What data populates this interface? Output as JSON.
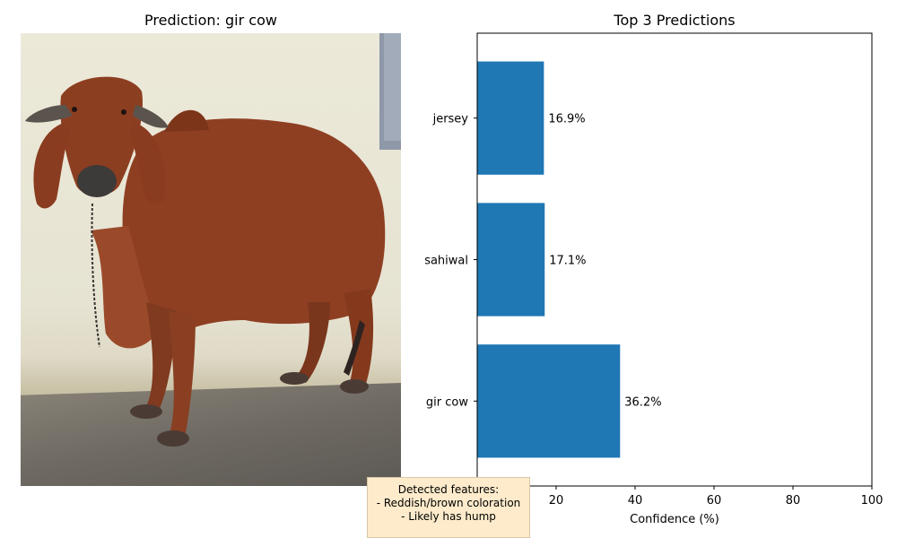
{
  "image_panel": {
    "title": "Prediction: gir cow"
  },
  "chart_data": {
    "type": "bar",
    "orientation": "horizontal",
    "title": "Top 3 Predictions",
    "xlabel": "Confidence (%)",
    "ylabel": "",
    "categories": [
      "gir cow",
      "sahiwal",
      "jersey"
    ],
    "values": [
      36.2,
      17.1,
      16.9
    ],
    "value_labels": [
      "36.2%",
      "17.1%",
      "16.9%"
    ],
    "xlim": [
      0,
      100
    ],
    "xticks": [
      0,
      20,
      40,
      60,
      80,
      100
    ],
    "grid": false,
    "bar_color": "#1f77b4"
  },
  "features_box": {
    "lines": [
      "Detected features:",
      "- Reddish/brown coloration",
      "- Likely has hump"
    ],
    "background": "#fdebcb"
  }
}
